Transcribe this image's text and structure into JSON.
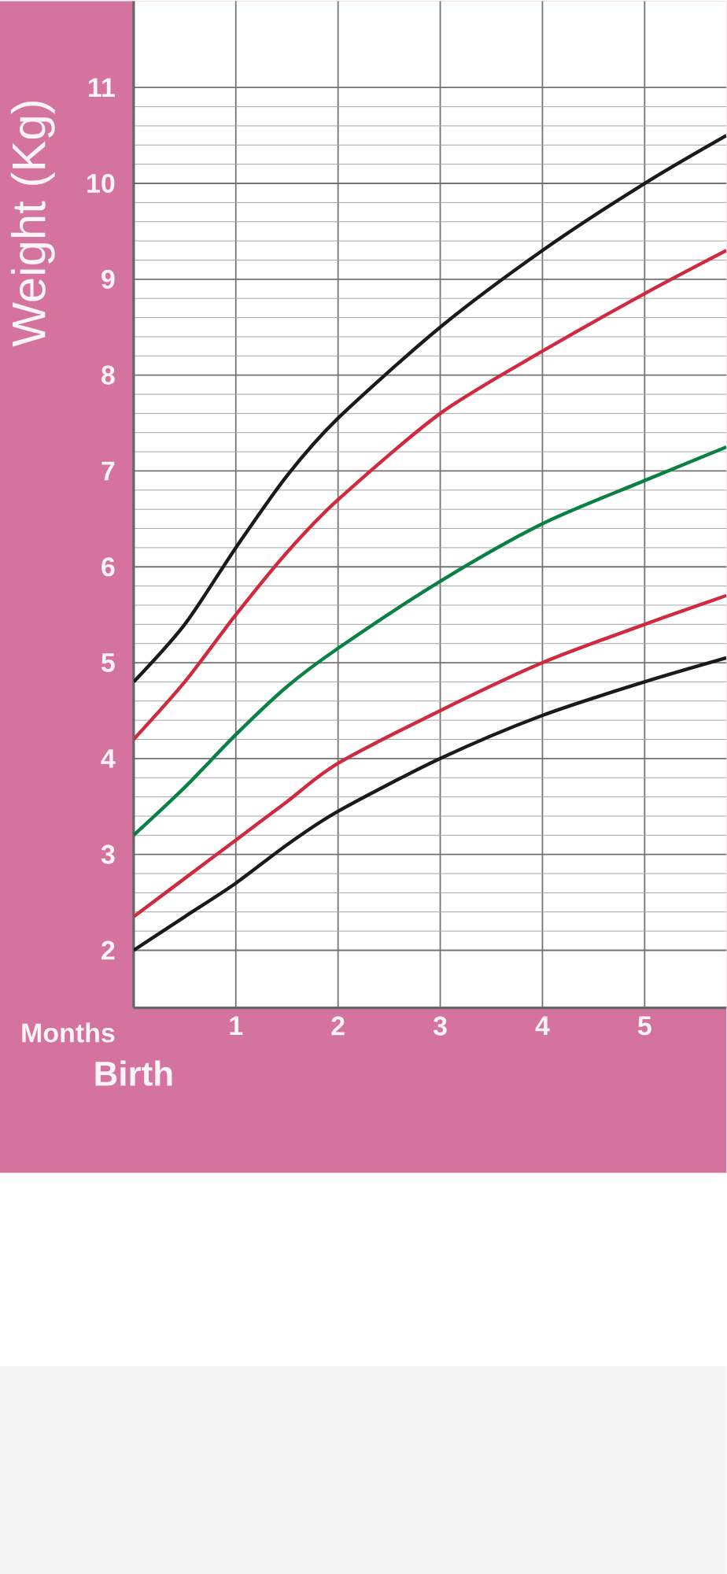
{
  "chart_data": {
    "type": "line",
    "xlabel": "Months",
    "ylabel": "Weight (Kg)",
    "annotations": [
      "Birth"
    ],
    "x": [
      0,
      0.5,
      1,
      1.5,
      2,
      3,
      4,
      5,
      5.8
    ],
    "series": [
      {
        "color": "#1a1a1a",
        "values": [
          4.8,
          5.4,
          6.2,
          6.95,
          7.55,
          8.5,
          9.3,
          10.0,
          10.5
        ]
      },
      {
        "color": "#cf2a3e",
        "values": [
          4.2,
          4.8,
          5.5,
          6.15,
          6.7,
          7.6,
          8.25,
          8.85,
          9.3
        ]
      },
      {
        "color": "#0b8043",
        "values": [
          3.2,
          3.7,
          4.25,
          4.75,
          5.15,
          5.85,
          6.45,
          6.9,
          7.25
        ]
      },
      {
        "color": "#cf2a3e",
        "values": [
          2.35,
          2.75,
          3.15,
          3.55,
          3.95,
          4.5,
          5.0,
          5.4,
          5.7
        ]
      },
      {
        "color": "#1a1a1a",
        "values": [
          2.0,
          2.35,
          2.7,
          3.1,
          3.45,
          4.0,
          4.45,
          4.8,
          5.05
        ]
      }
    ],
    "xlim": [
      0,
      5.8
    ],
    "ylim": [
      1.4,
      11.9
    ],
    "xticks": [
      1,
      2,
      3,
      4,
      5
    ],
    "yticks": [
      2,
      3,
      4,
      5,
      6,
      7,
      8,
      9,
      10,
      11
    ],
    "grid": true,
    "marker": "none"
  }
}
